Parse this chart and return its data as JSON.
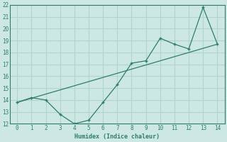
{
  "xlabel": "Humidex (Indice chaleur)",
  "x_data": [
    0,
    1,
    2,
    3,
    4,
    5,
    6,
    7,
    8,
    9,
    10,
    11,
    12,
    13,
    14
  ],
  "y_series": [
    13.8,
    14.2,
    14.0,
    12.8,
    12.0,
    12.3,
    13.8,
    15.3,
    17.1,
    17.3,
    19.2,
    18.7,
    18.3,
    21.8,
    18.7
  ],
  "y_trend": [
    13.8,
    14.15,
    14.5,
    14.85,
    15.2,
    15.55,
    15.9,
    16.25,
    16.6,
    16.95,
    17.3,
    17.65,
    18.0,
    18.35,
    18.7
  ],
  "line_color": "#2e7d6e",
  "bg_color": "#cde8e2",
  "grid_color": "#b0d4ce",
  "ylim": [
    12,
    22
  ],
  "xlim": [
    -0.5,
    14.5
  ],
  "yticks": [
    12,
    13,
    14,
    15,
    16,
    17,
    18,
    19,
    20,
    21,
    22
  ],
  "xticks": [
    0,
    1,
    2,
    3,
    4,
    5,
    6,
    7,
    8,
    9,
    10,
    11,
    12,
    13,
    14
  ]
}
